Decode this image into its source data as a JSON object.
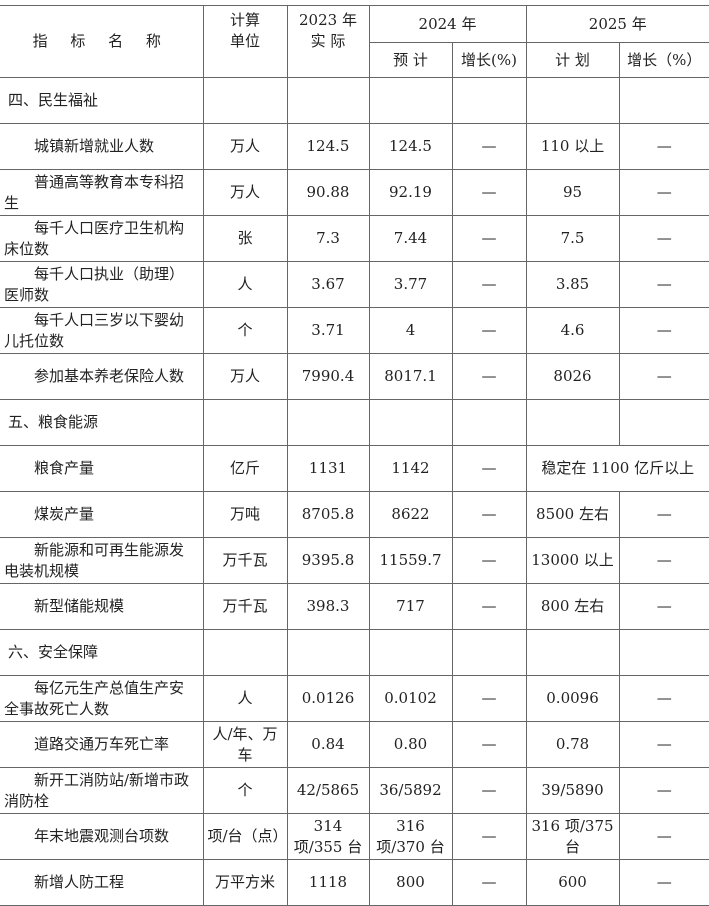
{
  "header": {
    "name": "指 标 名 称",
    "unit": "计算\n单位",
    "actual2023": "2023 年\n实 际",
    "y2024": "2024 年",
    "y2025": "2025 年",
    "estimate": "预 计",
    "growth2024": "增长(%)",
    "plan": "计 划",
    "growth2025": "增长（%）"
  },
  "sections": [
    {
      "title": "四、民生福祉",
      "rows": [
        {
          "name": "城镇新增就业人数",
          "unit": "万人",
          "a2023": "124.5",
          "e2024": "124.5",
          "g2024": "—",
          "p2025": "110 以上",
          "g2025": "—"
        },
        {
          "name": "普通高等教育本专科招生",
          "unit": "万人",
          "a2023": "90.88",
          "e2024": "92.19",
          "g2024": "—",
          "p2025": "95",
          "g2025": "—"
        },
        {
          "name": "每千人口医疗卫生机构床位数",
          "unit": "张",
          "a2023": "7.3",
          "e2024": "7.44",
          "g2024": "—",
          "p2025": "7.5",
          "g2025": "—"
        },
        {
          "name": "每千人口执业（助理）医师数",
          "unit": "人",
          "a2023": "3.67",
          "e2024": "3.77",
          "g2024": "—",
          "p2025": "3.85",
          "g2025": "—"
        },
        {
          "name": "每千人口三岁以下婴幼儿托位数",
          "unit": "个",
          "a2023": "3.71",
          "e2024": "4",
          "g2024": "—",
          "p2025": "4.6",
          "g2025": "—"
        },
        {
          "name": "参加基本养老保险人数",
          "unit": "万人",
          "a2023": "7990.4",
          "e2024": "8017.1",
          "g2024": "—",
          "p2025": "8026",
          "g2025": "—"
        }
      ]
    },
    {
      "title": "五、粮食能源",
      "rows": [
        {
          "name": "粮食产量",
          "unit": "亿斤",
          "a2023": "1131",
          "e2024": "1142",
          "g2024": "—",
          "p2025": "稳定在 1100 亿斤以上",
          "merged": true
        },
        {
          "name": "煤炭产量",
          "unit": "万吨",
          "a2023": "8705.8",
          "e2024": "8622",
          "g2024": "—",
          "p2025": "8500 左右",
          "g2025": "—"
        },
        {
          "name": "新能源和可再生能源发电装机规模",
          "unit": "万千瓦",
          "a2023": "9395.8",
          "e2024": "11559.7",
          "g2024": "—",
          "p2025": "13000 以上",
          "g2025": "—"
        },
        {
          "name": "新型储能规模",
          "unit": "万千瓦",
          "a2023": "398.3",
          "e2024": "717",
          "g2024": "—",
          "p2025": "800 左右",
          "g2025": "—"
        }
      ]
    },
    {
      "title": "六、安全保障",
      "rows": [
        {
          "name": "每亿元生产总值生产安全事故死亡人数",
          "unit": "人",
          "a2023": "0.0126",
          "e2024": "0.0102",
          "g2024": "—",
          "p2025": "0.0096",
          "g2025": "—"
        },
        {
          "name": "道路交通万车死亡率",
          "unit": "人/年、万车",
          "a2023": "0.84",
          "e2024": "0.80",
          "g2024": "—",
          "p2025": "0.78",
          "g2025": "—"
        },
        {
          "name": "新开工消防站/新增市政消防栓",
          "unit": "个",
          "a2023": "42/5865",
          "e2024": "36/5892",
          "g2024": "—",
          "p2025": "39/5890",
          "g2025": "—"
        },
        {
          "name": "年末地震观测台项数",
          "unit": "项/台（点）",
          "a2023": "314 项/355 台",
          "e2024": "316 项/370 台",
          "g2024": "—",
          "p2025": "316 项/375 台",
          "g2025": "—"
        },
        {
          "name": "新增人防工程",
          "unit": "万平方米",
          "a2023": "1118",
          "e2024": "800",
          "g2024": "—",
          "p2025": "600",
          "g2025": "—"
        }
      ]
    }
  ]
}
